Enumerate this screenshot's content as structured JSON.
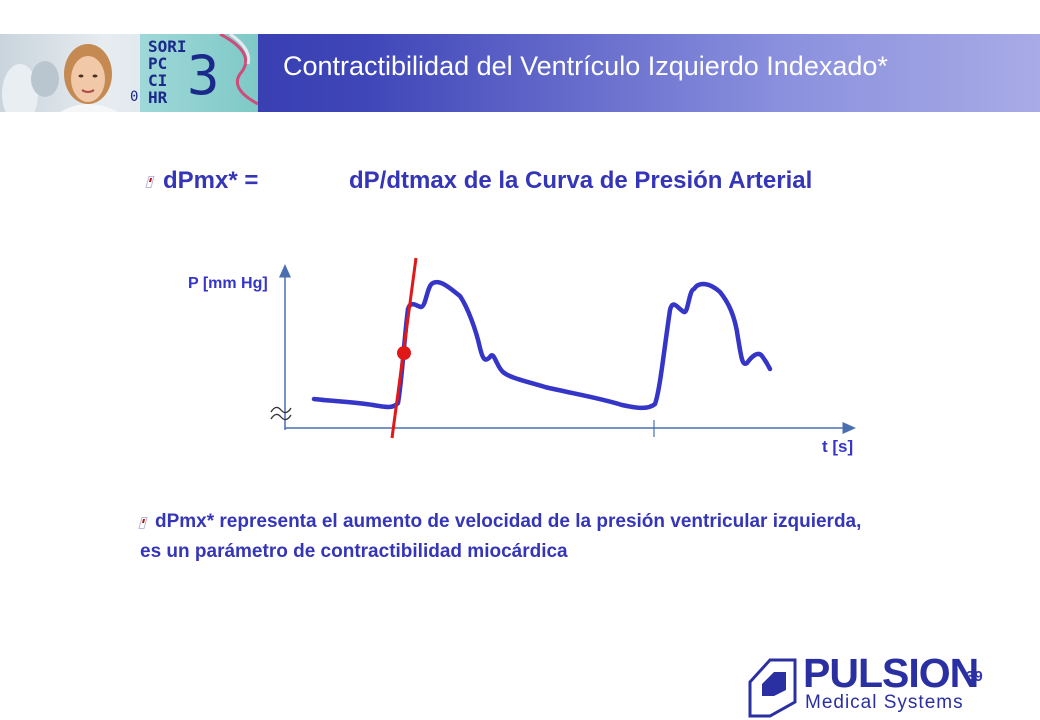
{
  "header": {
    "title": "Contractibilidad del Ventrículo Izquierdo Indexado*",
    "monitor_lines": [
      "SORI",
      "PC",
      "CI",
      "HR"
    ],
    "monitor_digit": "3",
    "monitor_small": "0",
    "colors": {
      "band_start": "#2a2fa2",
      "band_end": "#a8abe6"
    }
  },
  "bullet1": {
    "term": "dPmx* =",
    "definition": "dP/dtmax de la Curva de Presión Arterial"
  },
  "diagram": {
    "y_axis_label": "P [mm Hg]",
    "x_axis_label": "t [s]",
    "colors": {
      "curve": "#3535c8",
      "tangent": "#e01818",
      "axis": "#4a6fb0"
    }
  },
  "bullet2": {
    "line1": "dPmx* representa el aumento de velocidad de la presión ventricular izquierda,",
    "line2": "es un parámetro de contractibilidad miocárdica"
  },
  "footer": {
    "page_number": "39",
    "logo_word": "PULSION",
    "logo_sub": "Medical Systems"
  }
}
